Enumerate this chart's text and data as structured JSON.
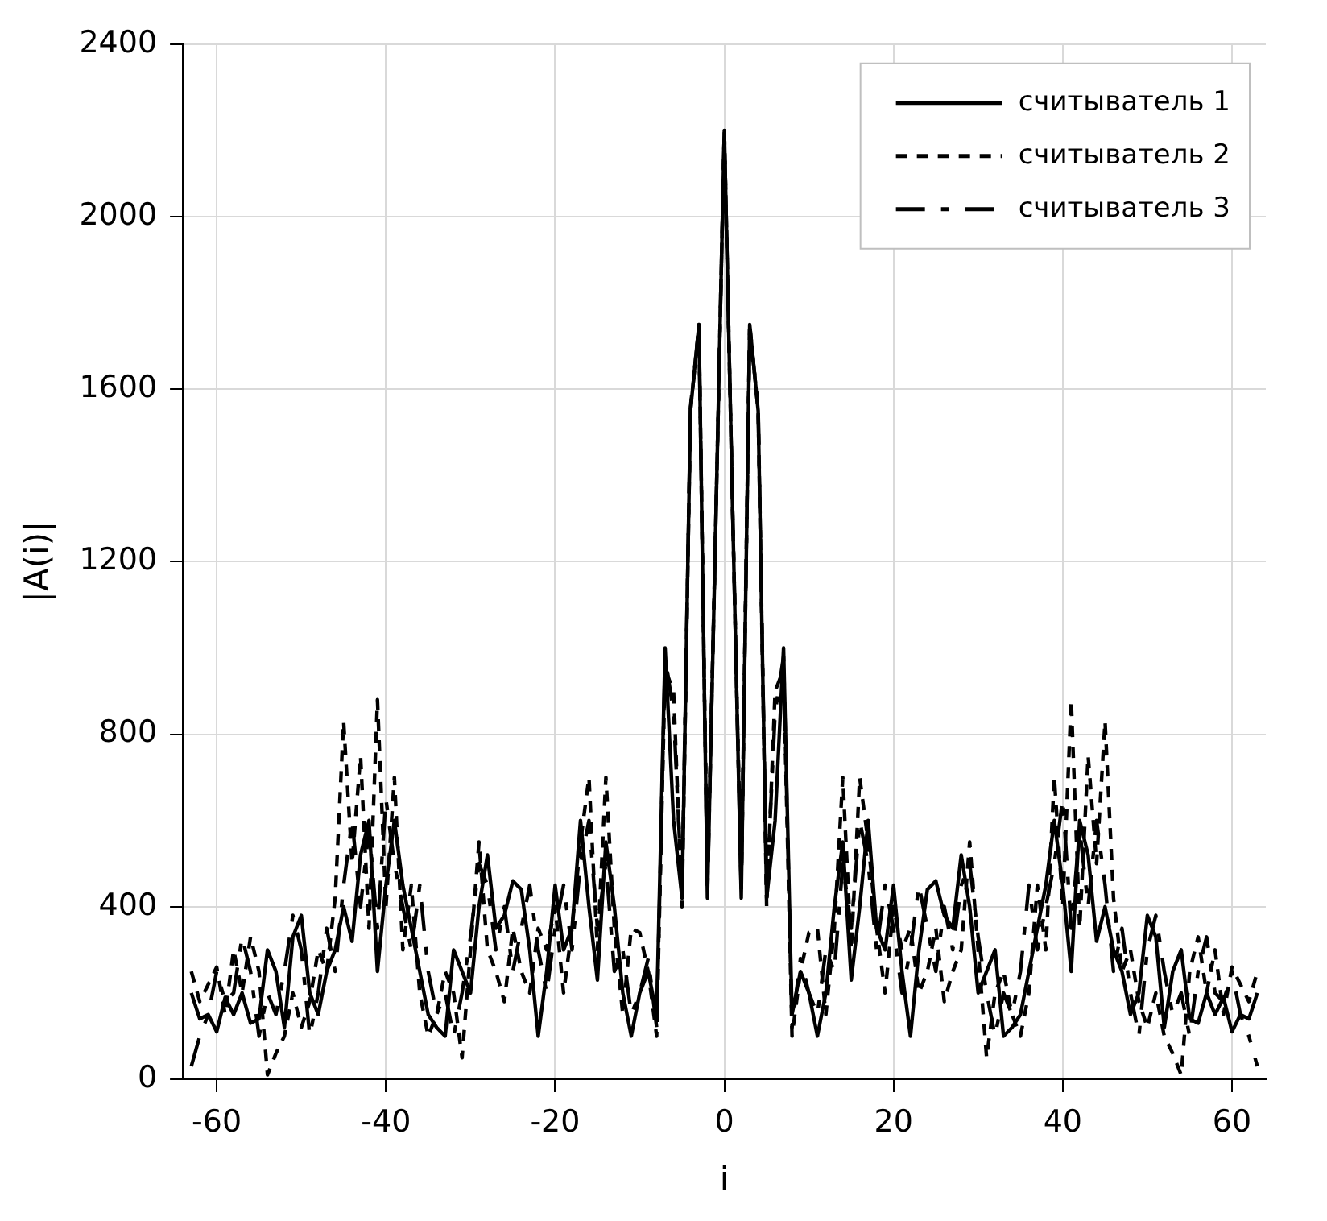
{
  "chart_data": {
    "type": "line",
    "xlabel": "i",
    "ylabel": "|A(i)|",
    "x": [
      -63,
      -62,
      -61,
      -60,
      -59,
      -58,
      -57,
      -56,
      -55,
      -54,
      -53,
      -52,
      -51,
      -50,
      -49,
      -48,
      -47,
      -46,
      -45,
      -44,
      -43,
      -42,
      -41,
      -40,
      -39,
      -38,
      -37,
      -36,
      -35,
      -34,
      -33,
      -32,
      -31,
      -30,
      -29,
      -28,
      -27,
      -26,
      -25,
      -24,
      -23,
      -22,
      -21,
      -20,
      -19,
      -18,
      -17,
      -16,
      -15,
      -14,
      -13,
      -12,
      -11,
      -10,
      -9,
      -8,
      -7,
      -6,
      -5,
      -4,
      -3,
      -2,
      -1,
      0,
      1,
      2,
      3,
      4,
      5,
      6,
      7,
      8,
      9,
      10,
      11,
      12,
      13,
      14,
      15,
      16,
      17,
      18,
      19,
      20,
      21,
      22,
      23,
      24,
      25,
      26,
      27,
      28,
      29,
      30,
      31,
      32,
      33,
      34,
      35,
      36,
      37,
      38,
      39,
      40,
      41,
      42,
      43,
      44,
      45,
      46,
      47,
      48,
      49,
      50,
      51,
      52,
      53,
      54,
      55,
      56,
      57,
      58,
      59,
      60,
      61,
      62,
      63
    ],
    "series": [
      {
        "name": "считыватель 1",
        "color": "#000000",
        "line_style": "solid",
        "values": [
          200,
          140,
          150,
          110,
          190,
          150,
          200,
          130,
          140,
          300,
          250,
          120,
          330,
          380,
          200,
          150,
          250,
          300,
          400,
          320,
          520,
          600,
          250,
          450,
          600,
          450,
          350,
          250,
          150,
          120,
          100,
          300,
          250,
          200,
          400,
          520,
          350,
          380,
          460,
          440,
          300,
          100,
          250,
          450,
          300,
          350,
          600,
          400,
          230,
          550,
          400,
          200,
          100,
          200,
          250,
          150,
          1000,
          600,
          420,
          1550,
          1750,
          420,
          1300,
          2200,
          1300,
          420,
          1750,
          1550,
          420,
          600,
          1000,
          150,
          250,
          200,
          100,
          200,
          400,
          550,
          230,
          400,
          600,
          350,
          300,
          450,
          250,
          100,
          300,
          440,
          460,
          380,
          350,
          520,
          400,
          200,
          250,
          300,
          100,
          120,
          150,
          250,
          350,
          450,
          600,
          450,
          250,
          600,
          520,
          320,
          400,
          300,
          250,
          150,
          200,
          380,
          330,
          120,
          250,
          300,
          140,
          130,
          200,
          150,
          190,
          110,
          150,
          140,
          200
        ]
      },
      {
        "name": "считыватель 2",
        "color": "#000000",
        "line_style": "dashed",
        "values": [
          250,
          180,
          220,
          260,
          150,
          300,
          200,
          330,
          250,
          10,
          60,
          100,
          200,
          120,
          180,
          300,
          250,
          420,
          830,
          500,
          750,
          350,
          880,
          400,
          700,
          300,
          450,
          200,
          100,
          150,
          250,
          200,
          50,
          300,
          550,
          300,
          250,
          180,
          350,
          250,
          200,
          350,
          300,
          400,
          200,
          350,
          550,
          700,
          300,
          700,
          350,
          150,
          350,
          340,
          250,
          100,
          950,
          900,
          400,
          1550,
          1750,
          450,
          1300,
          2200,
          1300,
          450,
          1750,
          1550,
          400,
          900,
          950,
          100,
          250,
          340,
          350,
          150,
          350,
          700,
          300,
          700,
          550,
          350,
          200,
          400,
          300,
          350,
          200,
          250,
          350,
          180,
          250,
          300,
          550,
          300,
          50,
          200,
          250,
          150,
          100,
          200,
          450,
          300,
          700,
          400,
          880,
          350,
          750,
          500,
          830,
          420,
          250,
          300,
          180,
          120,
          200,
          100,
          60,
          10,
          250,
          330,
          200,
          300,
          150,
          260,
          220,
          180,
          250
        ]
      },
      {
        "name": "считыватель 3",
        "color": "#000000",
        "line_style": "dashed",
        "values": [
          30,
          100,
          150,
          250,
          180,
          200,
          330,
          250,
          100,
          200,
          150,
          250,
          380,
          300,
          100,
          200,
          350,
          250,
          450,
          600,
          400,
          580,
          350,
          650,
          500,
          400,
          300,
          450,
          250,
          150,
          200,
          100,
          200,
          330,
          500,
          450,
          300,
          400,
          250,
          350,
          450,
          300,
          200,
          350,
          450,
          300,
          500,
          600,
          350,
          500,
          250,
          300,
          150,
          200,
          280,
          120,
          980,
          850,
          430,
          1560,
          1740,
          430,
          1300,
          2200,
          1300,
          430,
          1740,
          1560,
          430,
          850,
          980,
          120,
          280,
          200,
          150,
          300,
          250,
          500,
          350,
          600,
          500,
          300,
          450,
          350,
          200,
          300,
          450,
          350,
          250,
          400,
          300,
          450,
          500,
          330,
          200,
          100,
          200,
          150,
          250,
          450,
          300,
          400,
          500,
          650,
          350,
          580,
          400,
          600,
          450,
          250,
          350,
          200,
          100,
          300,
          380,
          250,
          150,
          200,
          100,
          250,
          330,
          200,
          180,
          250,
          150,
          100,
          30
        ]
      }
    ],
    "xlim": [
      -64,
      64
    ],
    "xticks": [
      -60,
      -40,
      -20,
      0,
      20,
      40,
      60
    ],
    "ylim": [
      0,
      2400
    ],
    "yticks": [
      0,
      400,
      800,
      1200,
      1600,
      2000,
      2400
    ],
    "grid": true,
    "legend": "top right",
    "marker": "none"
  }
}
